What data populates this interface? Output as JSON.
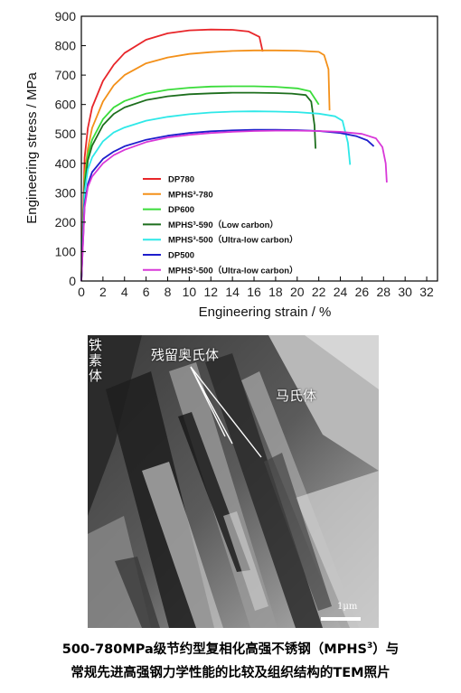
{
  "chart_data": {
    "type": "line",
    "xlabel": "Engineering strain / %",
    "ylabel": "Engineering stress / MPa",
    "xlim": [
      0,
      33
    ],
    "ylim": [
      0,
      900
    ],
    "xticks": [
      0,
      2,
      4,
      6,
      8,
      10,
      12,
      14,
      16,
      18,
      20,
      22,
      24,
      26,
      28,
      30,
      32
    ],
    "yticks": [
      0,
      100,
      200,
      300,
      400,
      500,
      600,
      700,
      800,
      900
    ],
    "legend_position": "lower-center",
    "series": [
      {
        "name": "DP780",
        "color": "#e8262a",
        "x": [
          0,
          0.3,
          0.6,
          1,
          2,
          3,
          4,
          6,
          8,
          10,
          12,
          14,
          15.5,
          16.5,
          16.8
        ],
        "y": [
          0,
          420,
          520,
          590,
          680,
          735,
          775,
          820,
          842,
          852,
          855,
          854,
          848,
          830,
          780
        ]
      },
      {
        "name": "MPHS³-780",
        "color": "#f39019",
        "x": [
          0,
          0.3,
          0.6,
          1,
          2,
          3,
          4,
          6,
          8,
          10,
          12,
          14,
          16,
          18,
          20,
          22,
          22.5,
          22.9,
          23.0
        ],
        "y": [
          0,
          360,
          450,
          520,
          610,
          665,
          700,
          740,
          760,
          772,
          778,
          782,
          784,
          784,
          783,
          779,
          768,
          720,
          580
        ]
      },
      {
        "name": "DP600",
        "color": "#3adc3a",
        "x": [
          0,
          0.3,
          0.6,
          1,
          2,
          3,
          4,
          6,
          8,
          10,
          12,
          14,
          16,
          18,
          20,
          21.2,
          22.0
        ],
        "y": [
          0,
          340,
          430,
          480,
          550,
          590,
          612,
          637,
          650,
          657,
          661,
          662,
          662,
          660,
          655,
          645,
          600
        ]
      },
      {
        "name": "MPHS³-590（Low carbon）",
        "color": "#1d6e1d",
        "x": [
          0,
          0.3,
          0.6,
          1,
          2,
          3,
          4,
          6,
          8,
          10,
          12,
          14,
          16,
          18,
          19.5,
          20.8,
          21.3,
          21.6,
          21.7
        ],
        "y": [
          0,
          320,
          410,
          460,
          530,
          568,
          590,
          615,
          628,
          635,
          638,
          640,
          640,
          639,
          637,
          632,
          610,
          530,
          450
        ]
      },
      {
        "name": "MPHS³-500（Ultra-low carbon）",
        "color": "#2ee8e8",
        "x": [
          0,
          0.3,
          0.6,
          1,
          2,
          3,
          4,
          6,
          8,
          10,
          12,
          14,
          16,
          18,
          20,
          22,
          23.5,
          24.2,
          24.7,
          24.9
        ],
        "y": [
          0,
          300,
          380,
          420,
          475,
          505,
          522,
          545,
          558,
          567,
          573,
          576,
          577,
          576,
          574,
          569,
          560,
          545,
          470,
          395
        ]
      },
      {
        "name": "DP500",
        "color": "#1e1ecc",
        "x": [
          0,
          0.3,
          0.6,
          1,
          2,
          3,
          4,
          6,
          8,
          10,
          12,
          14,
          16,
          18,
          20,
          22,
          24,
          25.5,
          26.5,
          27.1
        ],
        "y": [
          0,
          260,
          330,
          370,
          415,
          440,
          458,
          480,
          494,
          503,
          509,
          512,
          514,
          514,
          513,
          510,
          503,
          492,
          478,
          458
        ]
      },
      {
        "name": "MPHS³-500（Ultra-low carbon）",
        "color": "#d838d8",
        "x": [
          0,
          0.3,
          0.6,
          1,
          2,
          3,
          4,
          6,
          8,
          10,
          12,
          14,
          16,
          18,
          20,
          22,
          24,
          26,
          27.3,
          27.9,
          28.2,
          28.3
        ],
        "y": [
          0,
          250,
          320,
          355,
          400,
          428,
          446,
          472,
          488,
          497,
          503,
          507,
          510,
          511,
          511,
          510,
          507,
          500,
          485,
          455,
          400,
          335
        ]
      }
    ]
  },
  "tem": {
    "label_ferrite": "铁素体",
    "label_retained_austenite": "残留奥氏体",
    "label_martensite": "马氏体",
    "scale": "1μm"
  },
  "caption": {
    "line1_a": "500-780MPa级节约型复相化高强不锈钢（MPHS",
    "line1_sup": "3",
    "line1_b": "）与",
    "line2": "常规先进高强钢力学性能的比较及组织结构的TEM照片"
  }
}
